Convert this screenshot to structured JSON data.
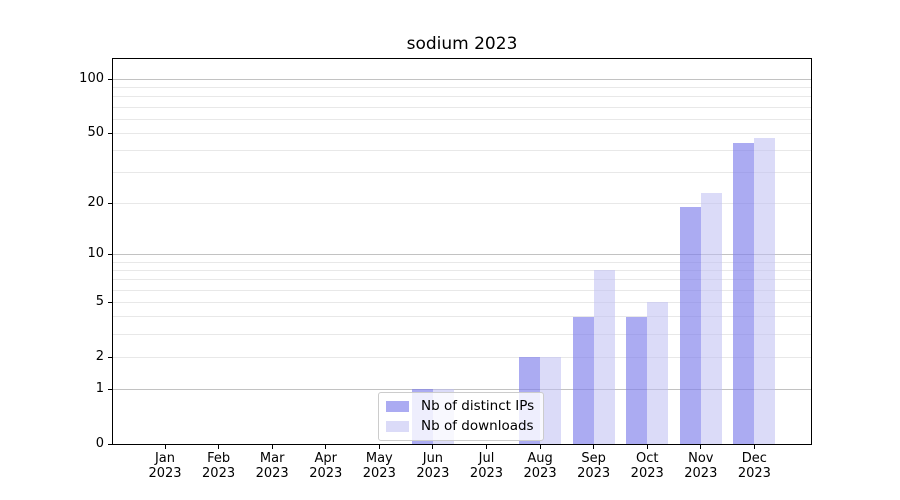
{
  "chart_data": {
    "type": "bar",
    "title": "sodium 2023",
    "x_categories": [
      "Jan",
      "Feb",
      "Mar",
      "Apr",
      "May",
      "Jun",
      "Jul",
      "Aug",
      "Sep",
      "Oct",
      "Nov",
      "Dec"
    ],
    "x_year_label": "2023",
    "series": [
      {
        "name": "Nb of distinct IPs",
        "color": "rgba(128,128,235,0.66)",
        "legend_hex": "#ababf2",
        "values": [
          0,
          0,
          0,
          0,
          0,
          1,
          0,
          2,
          4,
          4,
          19,
          44
        ]
      },
      {
        "name": "Nb of downloads",
        "color": "rgba(190,190,242,0.55)",
        "legend_hex": "#dbdbf8",
        "values": [
          0,
          0,
          0,
          0,
          0,
          1,
          0,
          2,
          8,
          5,
          23,
          47
        ]
      }
    ],
    "y_axis": {
      "scale": "log1p",
      "tick_labels": [
        100,
        50,
        20,
        10,
        5,
        2,
        1,
        0
      ],
      "major_gridlines": [
        1,
        10,
        100
      ],
      "minor_gridlines": [
        2,
        3,
        4,
        5,
        6,
        7,
        8,
        9,
        20,
        30,
        40,
        50,
        60,
        70,
        80,
        90
      ]
    },
    "legend_position": "lower center",
    "grid_on": true,
    "colors": {
      "major_grid": "#c2c2c2",
      "minor_grid": "#e8e8e8",
      "spine": "#000000",
      "text": "#000000",
      "background": "#ffffff"
    }
  }
}
